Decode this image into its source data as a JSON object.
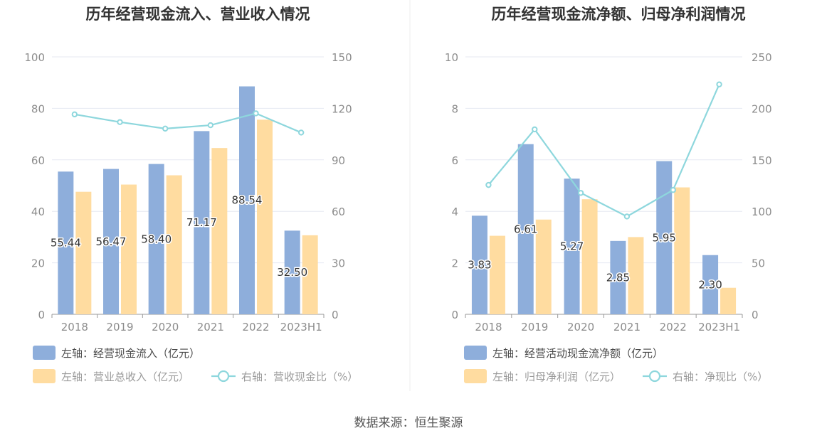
{
  "colors": {
    "bar_primary": "#8eaedb",
    "bar_secondary": "#ffdca0",
    "line": "#8ed7dd",
    "grid": "#e6e9f2",
    "axis": "#9a9a9a"
  },
  "chart_data": [
    {
      "type": "bar",
      "title": "历年经营现金流入、营业收入情况",
      "categories": [
        "2018",
        "2019",
        "2020",
        "2021",
        "2022",
        "2023H1"
      ],
      "left_axis": {
        "ticks": [
          "0",
          "20",
          "40",
          "60",
          "80",
          "100"
        ],
        "ylim": [
          0,
          100
        ]
      },
      "right_axis": {
        "ticks": [
          "0",
          "30",
          "60",
          "90",
          "120",
          "150"
        ],
        "ylim": [
          0,
          150
        ]
      },
      "series": [
        {
          "name": "左轴：经营现金流入（亿元）",
          "type": "bar",
          "axis": "left",
          "values": [
            55.44,
            56.47,
            58.4,
            71.17,
            88.54,
            32.5
          ],
          "labels": [
            "55.44",
            "56.47",
            "58.40",
            "71.17",
            "88.54",
            "32.50"
          ]
        },
        {
          "name": "左轴：营业总收入（亿元）",
          "type": "bar",
          "axis": "left",
          "values": [
            47.6,
            50.4,
            54.0,
            64.6,
            75.6,
            30.7
          ]
        },
        {
          "name": "右轴：营收现金比（%）",
          "type": "line",
          "axis": "right",
          "values": [
            116.5,
            112.0,
            108.2,
            110.2,
            117.1,
            105.9
          ]
        }
      ]
    },
    {
      "type": "bar",
      "title": "历年经营现金流净额、归母净利润情况",
      "categories": [
        "2018",
        "2019",
        "2020",
        "2021",
        "2022",
        "2023H1"
      ],
      "left_axis": {
        "ticks": [
          "0",
          "2",
          "4",
          "6",
          "8",
          "10"
        ],
        "ylim": [
          0,
          10
        ]
      },
      "right_axis": {
        "ticks": [
          "0",
          "50",
          "100",
          "150",
          "200",
          "250"
        ],
        "ylim": [
          0,
          250
        ]
      },
      "series": [
        {
          "name": "左轴：经营活动现金流净额（亿元）",
          "type": "bar",
          "axis": "left",
          "values": [
            3.83,
            6.61,
            5.27,
            2.85,
            5.95,
            2.3
          ],
          "labels": [
            "3.83",
            "6.61",
            "5.27",
            "2.85",
            "5.95",
            "2.30"
          ]
        },
        {
          "name": "左轴：归母净利润（亿元）",
          "type": "bar",
          "axis": "left",
          "values": [
            3.05,
            3.68,
            4.47,
            3.0,
            4.93,
            1.03
          ]
        },
        {
          "name": "右轴：净现比（%）",
          "type": "line",
          "axis": "right",
          "values": [
            125.6,
            179.6,
            117.9,
            95.0,
            120.7,
            223.3
          ]
        }
      ]
    }
  ],
  "legends": [
    [
      "左轴：经营现金流入（亿元）",
      "左轴：营业总收入（亿元）",
      "右轴：营收现金比（%）"
    ],
    [
      "左轴：经营活动现金流净额（亿元）",
      "左轴：归母净利润（亿元）",
      "右轴：净现比（%）"
    ]
  ],
  "footer": "数据来源：恒生聚源"
}
